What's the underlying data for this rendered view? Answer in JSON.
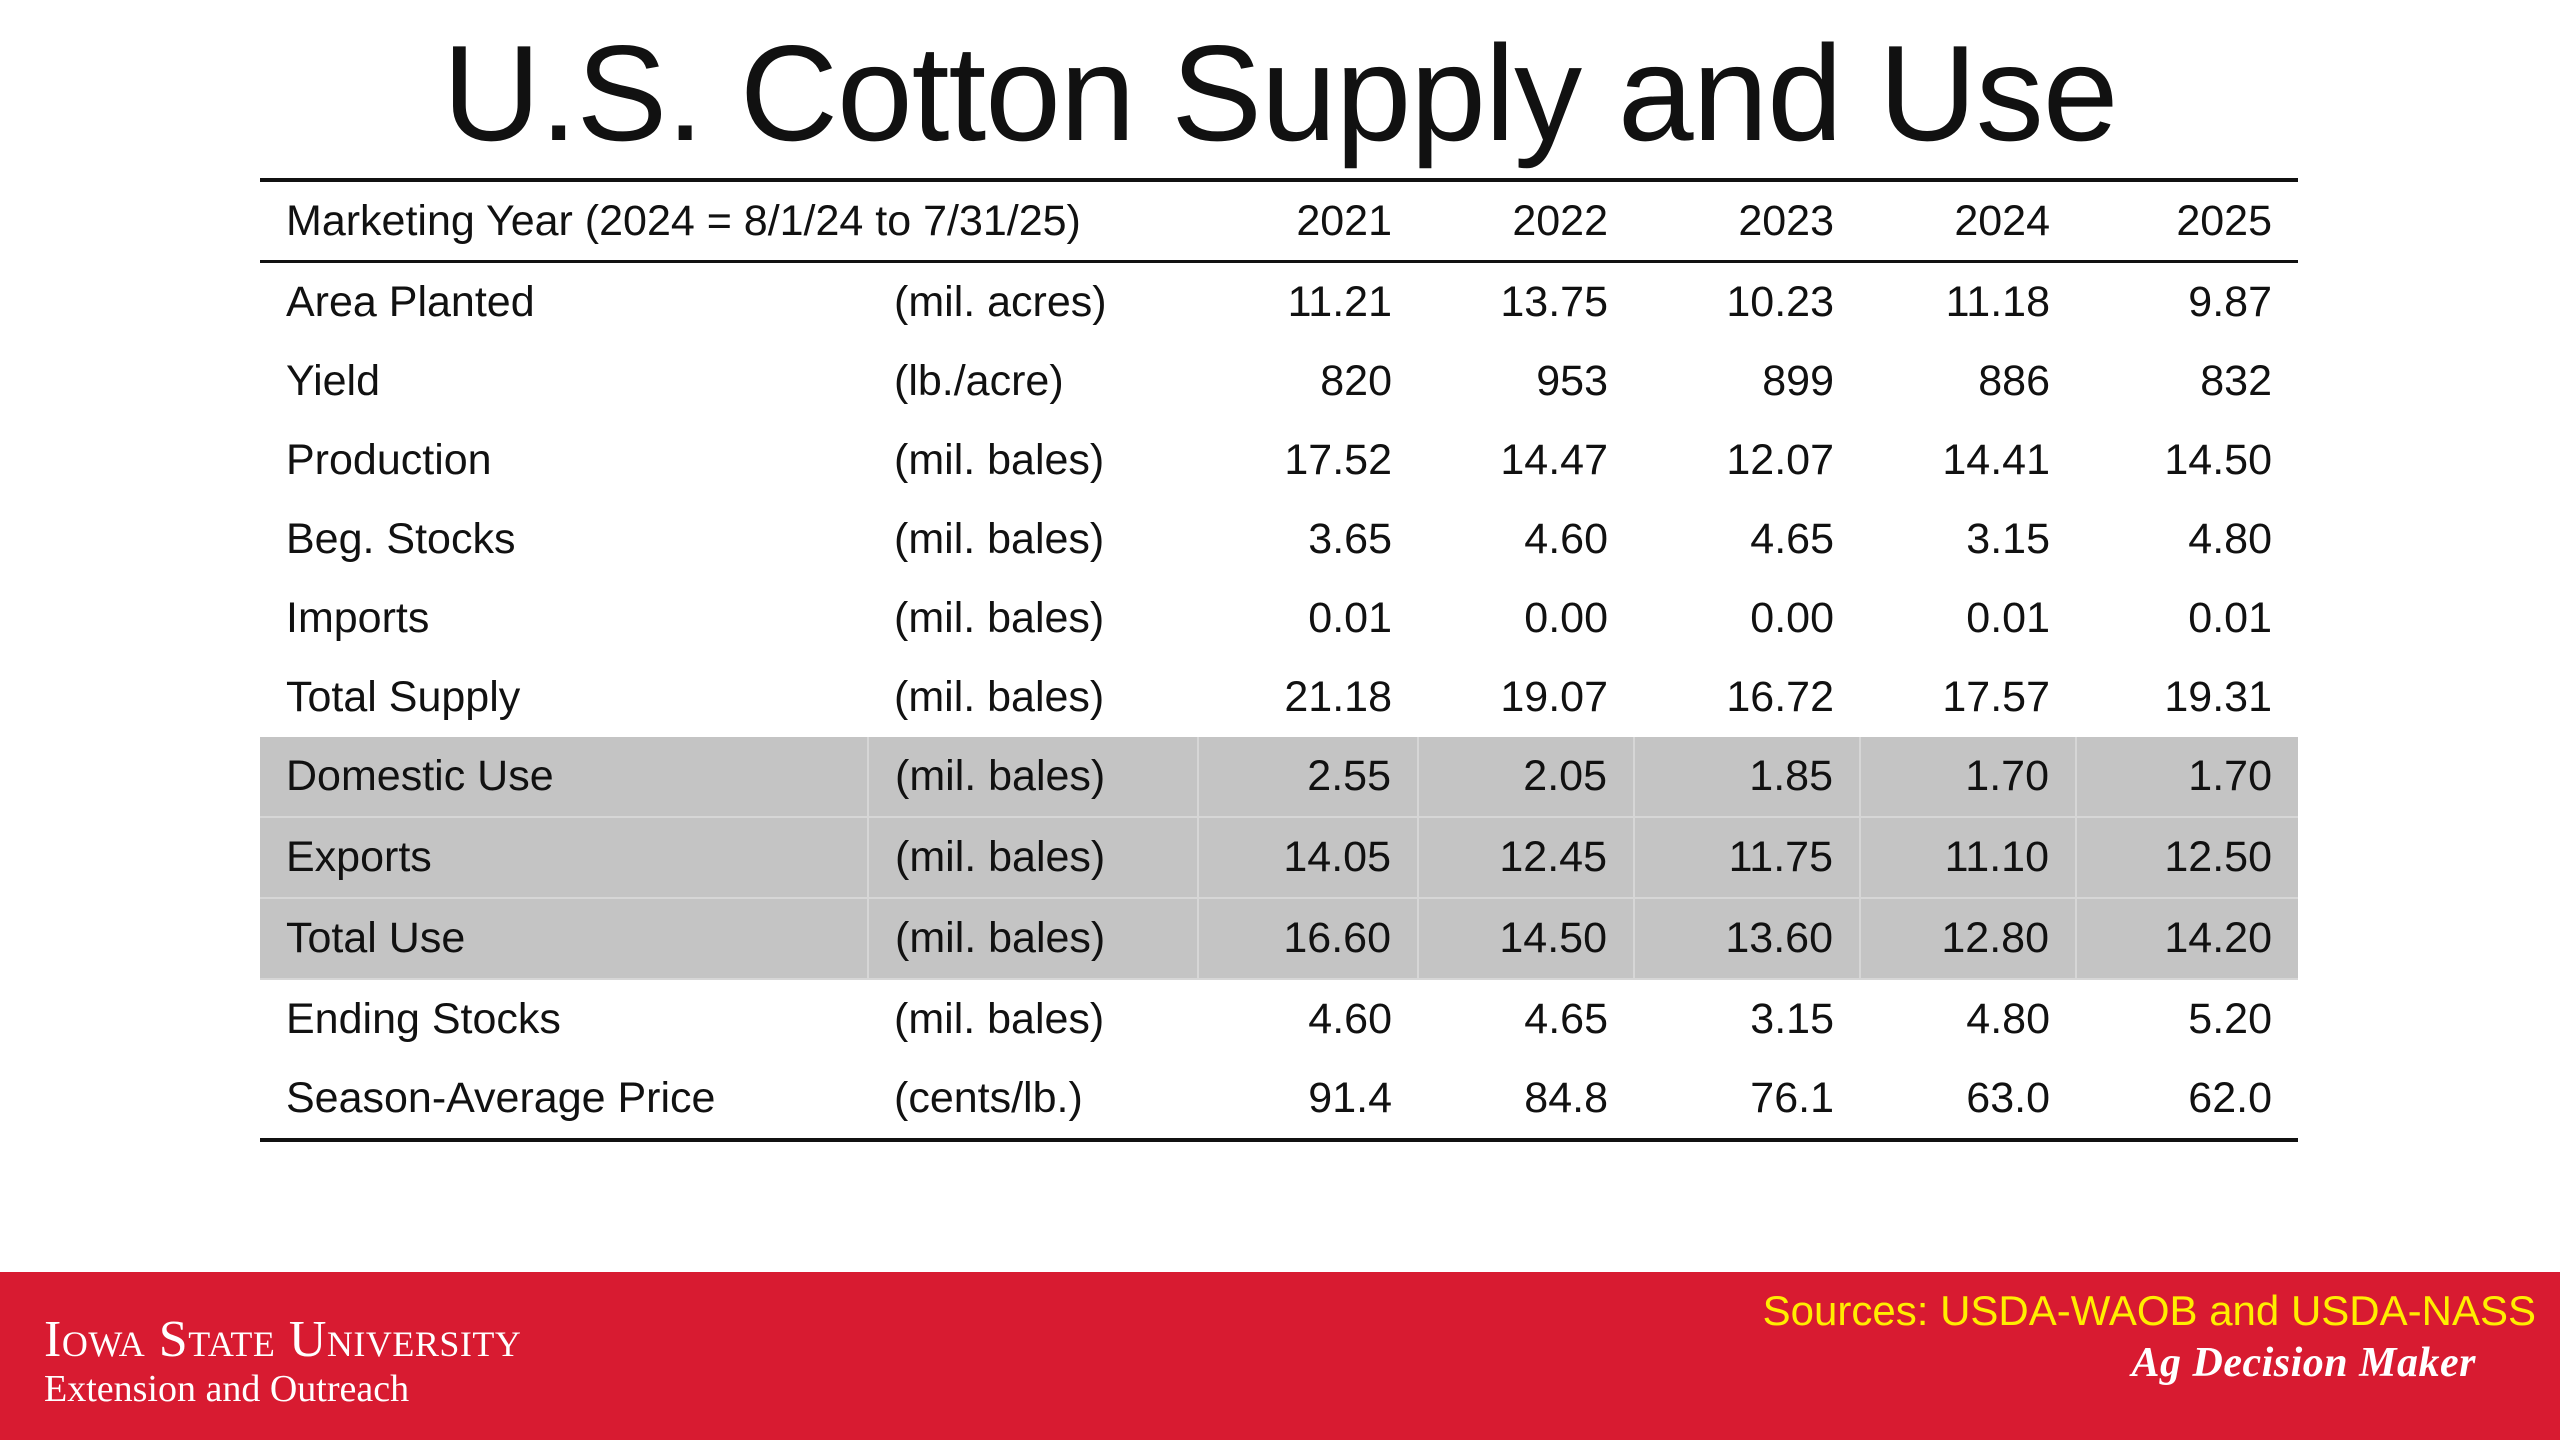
{
  "title": "U.S. Cotton Supply and Use",
  "table": {
    "header": {
      "label": "Marketing Year (2024 = 8/1/24 to 7/31/25)",
      "years": [
        "2021",
        "2022",
        "2023",
        "2024",
        "2025"
      ]
    },
    "rows": [
      {
        "label": "Area Planted",
        "unit": "(mil. acres)",
        "values": [
          "11.21",
          "13.75",
          "10.23",
          "11.18",
          "9.87"
        ],
        "shaded": false
      },
      {
        "label": "Yield",
        "unit": "(lb./acre)",
        "values": [
          "820",
          "953",
          "899",
          "886",
          "832"
        ],
        "shaded": false
      },
      {
        "label": "Production",
        "unit": "(mil. bales)",
        "values": [
          "17.52",
          "14.47",
          "12.07",
          "14.41",
          "14.50"
        ],
        "shaded": false
      },
      {
        "label": "Beg. Stocks",
        "unit": "(mil. bales)",
        "values": [
          "3.65",
          "4.60",
          "4.65",
          "3.15",
          "4.80"
        ],
        "shaded": false
      },
      {
        "label": "Imports",
        "unit": "(mil. bales)",
        "values": [
          "0.01",
          "0.00",
          "0.00",
          "0.01",
          "0.01"
        ],
        "shaded": false
      },
      {
        "label": "Total Supply",
        "unit": "(mil. bales)",
        "values": [
          "21.18",
          "19.07",
          "16.72",
          "17.57",
          "19.31"
        ],
        "shaded": false
      },
      {
        "label": "Domestic Use",
        "unit": "(mil. bales)",
        "values": [
          "2.55",
          "2.05",
          "1.85",
          "1.70",
          "1.70"
        ],
        "shaded": true
      },
      {
        "label": "Exports",
        "unit": "(mil. bales)",
        "values": [
          "14.05",
          "12.45",
          "11.75",
          "11.10",
          "12.50"
        ],
        "shaded": true
      },
      {
        "label": "Total Use",
        "unit": "(mil. bales)",
        "values": [
          "16.60",
          "14.50",
          "13.60",
          "12.80",
          "14.20"
        ],
        "shaded": true
      },
      {
        "label": "Ending Stocks",
        "unit": "(mil. bales)",
        "values": [
          "4.60",
          "4.65",
          "3.15",
          "4.80",
          "5.20"
        ],
        "shaded": false
      },
      {
        "label": "Season-Average Price",
        "unit": "(cents/lb.)",
        "values": [
          "91.4",
          "84.8",
          "76.1",
          "63.0",
          "62.0"
        ],
        "shaded": false
      }
    ]
  },
  "footer": {
    "university": "Iowa State University",
    "unit": "Extension and Outreach",
    "sources": "Sources: USDA-WAOB and USDA-NASS",
    "brand": "Ag Decision Maker",
    "colors": {
      "bar": "#d81b31",
      "sources_text": "#ffee00",
      "shading": "#c4c4c4"
    }
  }
}
